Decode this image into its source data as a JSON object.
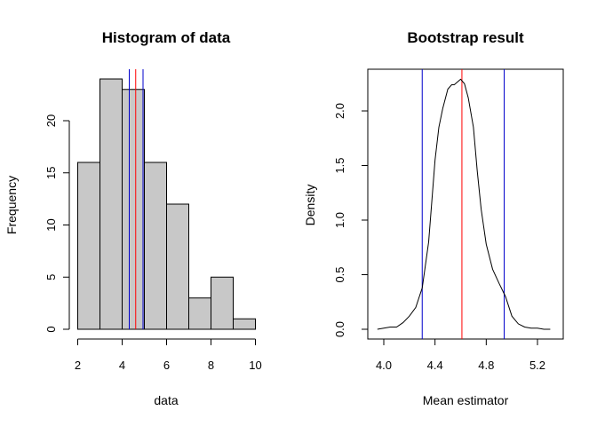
{
  "chart_data": [
    {
      "type": "bar",
      "title": "Histogram of data",
      "xlabel": "data",
      "ylabel": "Frequency",
      "xlim": [
        2,
        10
      ],
      "ylim": [
        0,
        24
      ],
      "bins": [
        {
          "x0": 2.0,
          "x1": 3.0,
          "count": 16
        },
        {
          "x0": 3.0,
          "x1": 4.0,
          "count": 24
        },
        {
          "x0": 4.0,
          "x1": 5.0,
          "count": 23
        },
        {
          "x0": 5.0,
          "x1": 6.0,
          "count": 16
        },
        {
          "x0": 6.0,
          "x1": 7.0,
          "count": 12
        },
        {
          "x0": 7.0,
          "x1": 8.0,
          "count": 3
        },
        {
          "x0": 8.0,
          "x1": 9.0,
          "count": 5
        },
        {
          "x0": 9.0,
          "x1": 10.0,
          "count": 1
        }
      ],
      "x_ticks": [
        2,
        4,
        6,
        8,
        10
      ],
      "x_tick_labels": [
        "2",
        "4",
        "6",
        "8",
        "10"
      ],
      "y_ticks": [
        0,
        5,
        10,
        15,
        20
      ],
      "y_tick_labels": [
        "0",
        "5",
        "10",
        "15",
        "20"
      ],
      "vlines": [
        {
          "x": 4.32,
          "color": "#0000cc"
        },
        {
          "x": 4.61,
          "color": "#ff0000"
        },
        {
          "x": 4.94,
          "color": "#0000cc"
        }
      ],
      "bar_fill": "#c8c8c8"
    },
    {
      "type": "line",
      "title": "Bootstrap result",
      "xlabel": "Mean estimator",
      "ylabel": "Density",
      "xlim": [
        3.92,
        5.33
      ],
      "ylim": [
        -0.02,
        2.38
      ],
      "x": [
        3.95,
        4.0,
        4.05,
        4.1,
        4.15,
        4.2,
        4.25,
        4.3,
        4.35,
        4.4,
        4.43,
        4.46,
        4.5,
        4.53,
        4.55,
        4.58,
        4.6,
        4.63,
        4.66,
        4.7,
        4.73,
        4.76,
        4.8,
        4.85,
        4.9,
        4.95,
        5.0,
        5.05,
        5.1,
        5.15,
        5.2,
        5.25,
        5.3
      ],
      "y": [
        0.0,
        0.01,
        0.02,
        0.02,
        0.06,
        0.12,
        0.2,
        0.38,
        0.8,
        1.55,
        1.85,
        2.02,
        2.2,
        2.24,
        2.24,
        2.27,
        2.29,
        2.25,
        2.12,
        1.85,
        1.45,
        1.1,
        0.78,
        0.55,
        0.42,
        0.3,
        0.12,
        0.05,
        0.02,
        0.01,
        0.01,
        0.0,
        0.0
      ],
      "x_ticks": [
        4.0,
        4.4,
        4.8,
        5.2
      ],
      "x_tick_labels": [
        "4.0",
        "4.4",
        "4.8",
        "5.2"
      ],
      "y_ticks": [
        0.0,
        0.5,
        1.0,
        1.5,
        2.0
      ],
      "y_tick_labels": [
        "0.0",
        "0.5",
        "1.0",
        "1.5",
        "2.0"
      ],
      "vlines": [
        {
          "x": 4.3,
          "color": "#0000cc"
        },
        {
          "x": 4.61,
          "color": "#ff0000"
        },
        {
          "x": 4.94,
          "color": "#0000cc"
        }
      ],
      "boxed": true
    }
  ]
}
